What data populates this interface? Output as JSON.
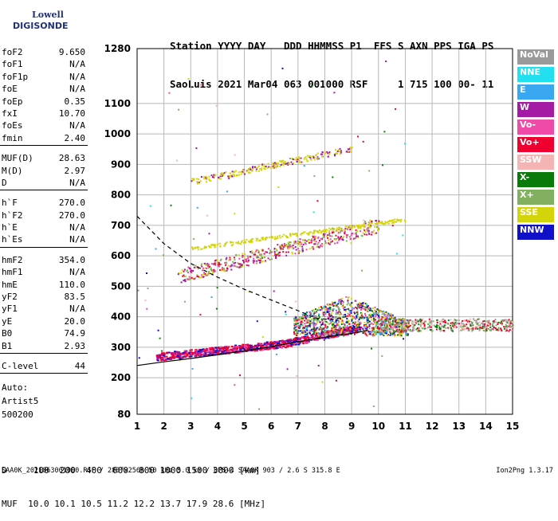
{
  "logo": {
    "line1": "Lowell",
    "line2": "DIGISONDE"
  },
  "header": {
    "line1": "Station YYYY DAY   DDD HHMMSS P1  FFS S AXN PPS IGA PS",
    "line2": "SaoLuis 2021 Mar04 063 001000 RSF     1 715 100 00- 11"
  },
  "params": {
    "group1": [
      {
        "k": "foF2",
        "v": "9.650"
      },
      {
        "k": "foF1",
        "v": "N/A"
      },
      {
        "k": "foF1p",
        "v": "N/A"
      },
      {
        "k": "foE",
        "v": "N/A"
      },
      {
        "k": "foEp",
        "v": "0.35"
      },
      {
        "k": "fxI",
        "v": "10.70"
      },
      {
        "k": "foEs",
        "v": "N/A"
      },
      {
        "k": "fmin",
        "v": "2.40"
      }
    ],
    "group2": [
      {
        "k": "MUF(D)",
        "v": "28.63"
      },
      {
        "k": "M(D)",
        "v": "2.97"
      },
      {
        "k": "D",
        "v": "N/A"
      }
    ],
    "group3": [
      {
        "k": "h`F",
        "v": "270.0"
      },
      {
        "k": "h`F2",
        "v": "270.0"
      },
      {
        "k": "h`E",
        "v": "N/A"
      },
      {
        "k": "h`Es",
        "v": "N/A"
      }
    ],
    "group4": [
      {
        "k": "hmF2",
        "v": "354.0"
      },
      {
        "k": "hmF1",
        "v": "N/A"
      },
      {
        "k": "hmE",
        "v": "110.0"
      },
      {
        "k": "yF2",
        "v": "83.5"
      },
      {
        "k": "yF1",
        "v": "N/A"
      },
      {
        "k": "yE",
        "v": "20.0"
      },
      {
        "k": "B0",
        "v": "74.9"
      },
      {
        "k": "B1",
        "v": "2.93"
      }
    ],
    "group5": [
      {
        "k": "C-level",
        "v": "44"
      }
    ]
  },
  "auto": {
    "line1": "Auto:",
    "line2": "Artist5",
    "line3": "500200"
  },
  "legend": [
    {
      "label": "NoVal",
      "color": "#9a9a9a"
    },
    {
      "label": "NNE",
      "color": "#22e0f0"
    },
    {
      "label": "E",
      "color": "#3aa8f0"
    },
    {
      "label": "W",
      "color": "#a41aa4"
    },
    {
      "label": "Vo-",
      "color": "#f04aa8"
    },
    {
      "label": "Vo+",
      "color": "#f00030"
    },
    {
      "label": "SSW",
      "color": "#f4b4b4"
    },
    {
      "label": "X-",
      "color": "#0a7a0a"
    },
    {
      "label": "X+",
      "color": "#80b060"
    },
    {
      "label": "SSE",
      "color": "#d4d40a"
    },
    {
      "label": "NNW",
      "color": "#1010c8"
    }
  ],
  "bottom": {
    "line1": "D     100  200  400  600  800 1000 1500 3000 [km]",
    "line2": "MUF  10.0 10.1 10.5 11.2 12.2 13.7 17.9 28.6 [MHz]"
  },
  "footer": "SAA0K_2021063001000.RSF / 280fx256h 50 kHz 5.0 km / DPS-4 SAA0K 903 / 2.6 S 315.8 E",
  "version": "Ion2Png 1.3.17",
  "chart_data": {
    "type": "scatter",
    "x_ticks": [
      "1",
      "2",
      "3",
      "4",
      "5",
      "6",
      "7",
      "8",
      "9",
      "10",
      "11",
      "12",
      "13",
      "14",
      "15"
    ],
    "y_ticks": [
      "80",
      "200",
      "300",
      "400",
      "500",
      "600",
      "700",
      "800",
      "900",
      "1000",
      "1100",
      "1280"
    ],
    "xlim": [
      1,
      15
    ],
    "ylim": [
      80,
      1280
    ],
    "grid": true,
    "trace_curve": [
      [
        1,
        240
      ],
      [
        2,
        252
      ],
      [
        3,
        263
      ],
      [
        4,
        275
      ],
      [
        5,
        288
      ],
      [
        6,
        302
      ],
      [
        7,
        318
      ],
      [
        8,
        333
      ],
      [
        8.8,
        343
      ],
      [
        9.3,
        350
      ],
      [
        9.6,
        355
      ]
    ],
    "profile_curve": [
      [
        1,
        730
      ],
      [
        2,
        640
      ],
      [
        3,
        575
      ],
      [
        4,
        530
      ],
      [
        5,
        490
      ],
      [
        6,
        455
      ],
      [
        7,
        420
      ],
      [
        7.7,
        395
      ],
      [
        8.2,
        390
      ],
      [
        8.8,
        400
      ]
    ]
  }
}
